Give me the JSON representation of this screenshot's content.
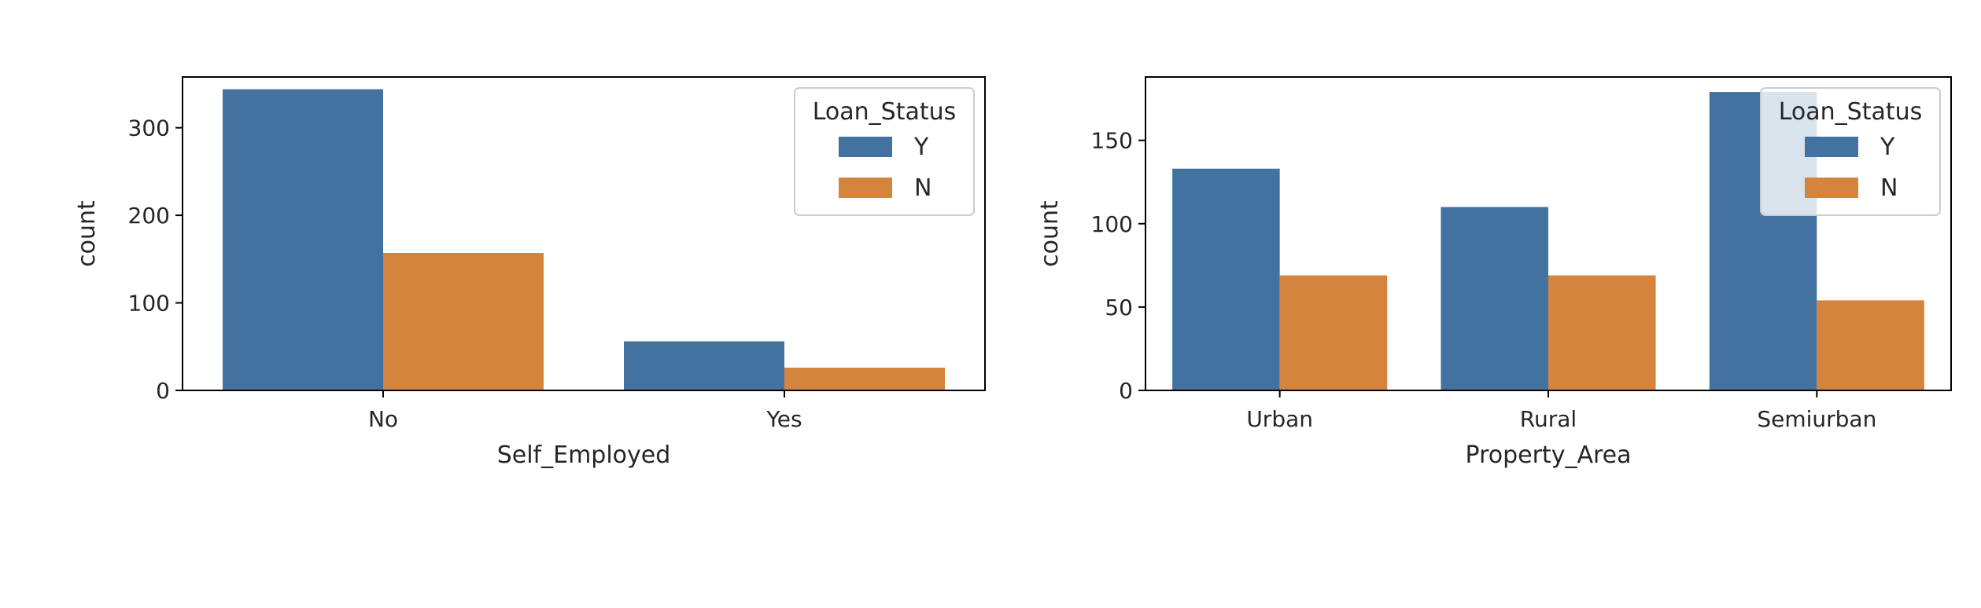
{
  "chart_data": [
    {
      "type": "bar",
      "xlabel": "Self_Employed",
      "ylabel": "count",
      "categories": [
        "No",
        "Yes"
      ],
      "ylim": [
        0,
        358
      ],
      "yticks": [
        0,
        100,
        200,
        300
      ],
      "legend": {
        "title": "Loan_Status",
        "placement": "upper right"
      },
      "series": [
        {
          "name": "Y",
          "color": "#4372a0",
          "values": [
            344,
            56
          ]
        },
        {
          "name": "N",
          "color": "#d5843e",
          "values": [
            157,
            26
          ]
        }
      ]
    },
    {
      "type": "bar",
      "xlabel": "Property_Area",
      "ylabel": "count",
      "categories": [
        "Urban",
        "Rural",
        "Semiurban"
      ],
      "ylim": [
        0,
        188
      ],
      "yticks": [
        0,
        50,
        100,
        150
      ],
      "legend": {
        "title": "Loan_Status",
        "placement": "upper right"
      },
      "series": [
        {
          "name": "Y",
          "color": "#4372a0",
          "values": [
            133,
            110,
            179
          ]
        },
        {
          "name": "N",
          "color": "#d5843e",
          "values": [
            69,
            69,
            54
          ]
        }
      ]
    }
  ]
}
